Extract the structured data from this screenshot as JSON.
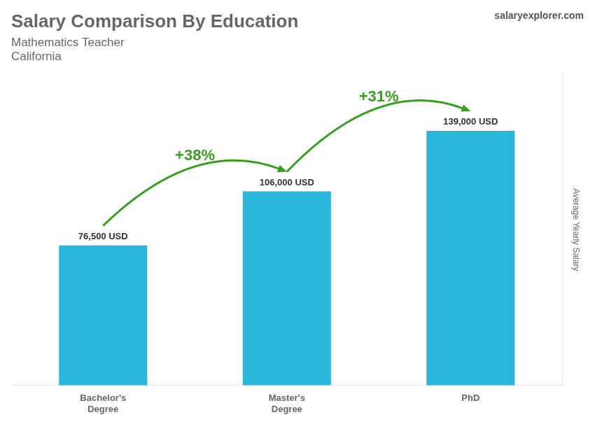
{
  "chart_data": {
    "type": "bar",
    "title": "Salary Comparison By Education",
    "subtitle": [
      "Mathematics Teacher",
      "California"
    ],
    "ylabel": "Average Yearly Salary",
    "categories": [
      "Bachelor's\nDegree",
      "Master's\nDegree",
      "PhD"
    ],
    "values": [
      76500,
      106000,
      139000
    ],
    "value_labels": [
      "76,500 USD",
      "106,000 USD",
      "139,000 USD"
    ],
    "data_labels": true,
    "color": "#29b6d8",
    "ylim": [
      0,
      170000
    ],
    "grid": false,
    "tick_labels": "x",
    "annotations": [
      {
        "text": "+38%",
        "from": 0,
        "to": 1,
        "color": "#3a9d23"
      },
      {
        "text": "+31%",
        "from": 1,
        "to": 2,
        "color": "#3a9d23"
      }
    ],
    "source": "salaryexplorer.com"
  }
}
